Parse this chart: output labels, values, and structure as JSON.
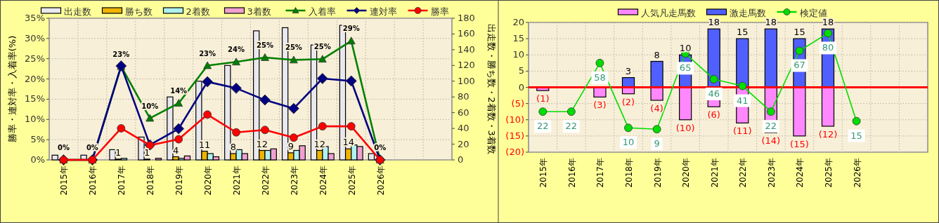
{
  "chart_data": [
    {
      "type": "bar",
      "categories": [
        "2015年",
        "2016年",
        "2017年",
        "2018年",
        "2019年",
        "2020年",
        "2021年",
        "2022年",
        "2023年",
        "2024年",
        "2025年",
        "2026年",
        null,
        null
      ],
      "ylabel": "勝率・連対率・入着率(%)",
      "y2label": "出走数・勝ち数・2着数・3着数",
      "ylim": [
        0,
        35
      ],
      "yticks": [
        {
          "value": 0,
          "label": "0%"
        },
        {
          "value": 5,
          "label": "5%"
        },
        {
          "value": 10,
          "label": "10%"
        },
        {
          "value": 15,
          "label": "15%"
        },
        {
          "value": 20,
          "label": "20%"
        },
        {
          "value": 25,
          "label": "25%"
        },
        {
          "value": 30,
          "label": "30%"
        },
        {
          "value": 35,
          "label": "35%"
        }
      ],
      "y2lim": [
        0,
        180
      ],
      "y2ticks": [
        0,
        20,
        40,
        60,
        80,
        100,
        120,
        140,
        160,
        180
      ],
      "grid": true,
      "legend": "top",
      "series": [
        {
          "name": "出走数",
          "axis": "y2",
          "color": "#e8e8ee",
          "values": [
            6,
            6,
            13,
            29,
            80,
            100,
            120,
            164,
            168,
            146,
            171,
            8,
            null,
            null
          ]
        },
        {
          "name": "勝ち数",
          "axis": "y2",
          "color": "#f0b400",
          "values": [
            0,
            0,
            1,
            1,
            4,
            11,
            8,
            12,
            9,
            12,
            14,
            0,
            null,
            null
          ],
          "value_labels": [
            null,
            null,
            "1",
            "1",
            "4",
            "11",
            "8",
            "12",
            "9",
            "12",
            "14",
            null,
            null,
            null
          ]
        },
        {
          "name": "2着数",
          "axis": "y2",
          "color": "#b0f0f0",
          "values": [
            0,
            0,
            2,
            0,
            2,
            8,
            13,
            12,
            12,
            17,
            19,
            0,
            null,
            null
          ]
        },
        {
          "name": "3着数",
          "axis": "y2",
          "color": "#f0a0d0",
          "values": [
            0,
            0,
            0,
            2,
            5,
            4,
            8,
            14,
            18,
            8,
            17,
            0,
            null,
            null
          ]
        },
        {
          "name": "入着率",
          "type": "line",
          "marker": "triangle",
          "color": "#008000",
          "values": [
            0,
            0,
            23.1,
            10.3,
            14,
            23.3,
            24.2,
            25.3,
            24.7,
            24.9,
            29.4,
            0,
            null,
            null
          ],
          "value_labels": [
            "0%",
            "0%",
            "23%",
            "10%",
            "14%",
            "23%",
            "24%",
            "25%",
            "25%",
            "25%",
            "29%",
            "0%",
            null,
            null
          ]
        },
        {
          "name": "連対率",
          "type": "line",
          "marker": "diamond",
          "color": "#000080",
          "values": [
            0,
            0,
            23.2,
            3.7,
            7.7,
            19.3,
            17.7,
            14.8,
            12.7,
            20.1,
            19.5,
            0,
            null,
            null
          ]
        },
        {
          "name": "勝率",
          "type": "line",
          "marker": "circle",
          "color": "#ff0000",
          "values": [
            0,
            0,
            7.8,
            3.6,
            5.1,
            11.2,
            6.8,
            7.4,
            5.5,
            8.3,
            8.3,
            0,
            null,
            null
          ]
        }
      ]
    },
    {
      "type": "bar",
      "stacked": true,
      "categories": [
        "2015年",
        "2016年",
        "2017年",
        "2018年",
        "2019年",
        "2020年",
        "2021年",
        "2022年",
        "2023年",
        "2024年",
        "2025年",
        "2026年",
        null,
        null
      ],
      "ylim": [
        -20,
        20
      ],
      "yticks": [
        {
          "value": -20,
          "label": "(20)"
        },
        {
          "value": -15,
          "label": "(15)"
        },
        {
          "value": -10,
          "label": "(10)"
        },
        {
          "value": -5,
          "label": "(5)"
        },
        0,
        5,
        10,
        15,
        20
      ],
      "y2lim": [
        -8,
        88
      ],
      "tick_labels": "xy",
      "grid": true,
      "legend": "top",
      "ref_lines": [
        {
          "axis": "y",
          "value": 0,
          "color": "#ff0000"
        }
      ],
      "series": [
        {
          "name": "人気凡走馬数",
          "color": "#ff88ff",
          "values": [
            -1,
            null,
            -3,
            -2,
            -4,
            -10,
            -6,
            -11,
            -14,
            -15,
            -12,
            null,
            null,
            null
          ],
          "value_labels": [
            "(1)",
            null,
            "(3)",
            "(2)",
            "(4)",
            "(10)",
            "(6)",
            "(11)",
            "(14)",
            "(15)",
            "(12)",
            null,
            null,
            null
          ]
        },
        {
          "name": "激走馬数",
          "color": "#5060ff",
          "values": [
            null,
            null,
            null,
            3,
            8,
            10,
            18,
            15,
            18,
            15,
            18,
            null,
            null,
            null
          ],
          "value_labels": [
            null,
            null,
            null,
            "3",
            "8",
            "10",
            "18",
            "15",
            "18",
            "15",
            "18",
            null,
            null,
            null
          ]
        },
        {
          "name": "検定値",
          "type": "line",
          "axis": "y2",
          "marker": "circle",
          "color": "#00dd00",
          "values": [
            22,
            22,
            58,
            10,
            9,
            65,
            46,
            41,
            22,
            67,
            80,
            15,
            null,
            null
          ],
          "value_labels": [
            "22",
            "22",
            "58",
            "10",
            "9",
            "65",
            "46",
            "41",
            "22",
            "67",
            "80",
            "15",
            null,
            null
          ]
        }
      ]
    }
  ]
}
